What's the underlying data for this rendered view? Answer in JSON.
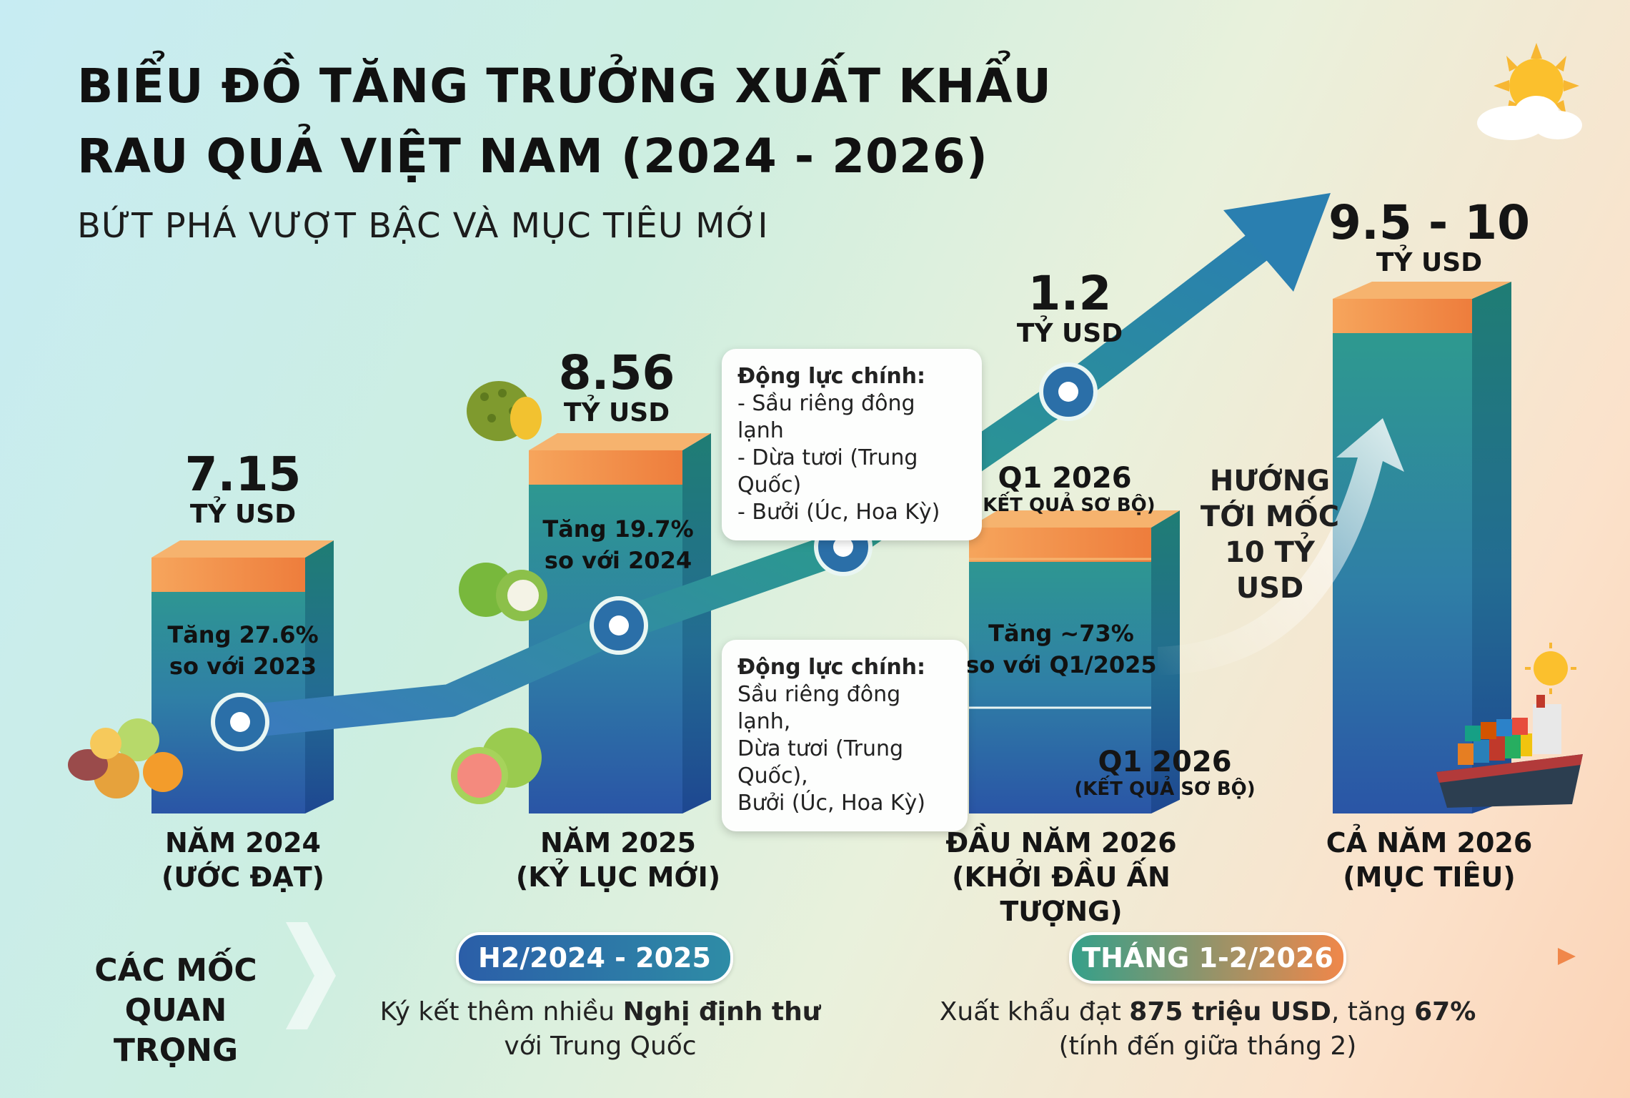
{
  "header": {
    "title_line1": "BIỂU ĐỒ TĂNG TRƯỞNG XUẤT KHẨU",
    "title_line2": "RAU QUẢ VIỆT NAM (2024 - 2026)",
    "subtitle": "BỨT PHÁ VƯỢT BẬC VÀ MỤC TIÊU MỚI"
  },
  "chart_data": {
    "type": "bar",
    "categories": [
      "NĂM 2024 (ƯỚC ĐẠT)",
      "NĂM 2025 (KỶ LỤC MỚI)",
      "ĐẦU NĂM 2026 (KHỞI ĐẦU ẤN TƯỢNG)",
      "CẢ NĂM 2026 (MỤC TIÊU)"
    ],
    "unit": "TỶ USD",
    "bars": [
      {
        "value_label": "7.15",
        "unit": "TỶ USD",
        "growth_line1": "Tăng 27.6%",
        "growth_line2": "so với 2023",
        "label_line1": "NĂM 2024",
        "label_line2": "(ƯỚC ĐẠT)",
        "value": 7.15
      },
      {
        "value_label": "8.56",
        "unit": "TỶ USD",
        "growth_line1": "Tăng 19.7%",
        "growth_line2": "so với 2024",
        "label_line1": "NĂM 2025",
        "label_line2": "(KỶ LỤC MỚI)",
        "value": 8.56
      },
      {
        "value_label": "1.2",
        "unit": "TỶ USD",
        "growth_line1": "Tăng ~73%",
        "growth_line2": "so với Q1/2025",
        "label_line1": "ĐẦU NĂM 2026",
        "label_line2": "(KHỞI ĐẦU ẤN TƯỢNG)",
        "value": 1.2,
        "q1_top_line1": "Q1 2026",
        "q1_top_line2": "(KẾT QUẢ SƠ BỘ)",
        "q1_bottom_line1": "Q1 2026",
        "q1_bottom_line2": "(KẾT QUẢ SƠ BỘ)"
      },
      {
        "value_label": "9.5 - 10",
        "unit": "TỶ USD",
        "label_line1": "CẢ NĂM 2026",
        "label_line2": "(MỤC TIÊU)",
        "value_range": [
          9.5,
          10
        ]
      }
    ],
    "trend_line": true,
    "annotation_toward": [
      "HƯỚNG",
      "TỚI MỐC",
      "10 TỶ",
      "USD"
    ]
  },
  "callouts": {
    "upper": {
      "title": "Động lực chính:",
      "items": [
        "- Sầu riêng đông lạnh",
        "- Dừa tươi (Trung Quốc)",
        "- Bưởi (Úc, Hoa Kỳ)"
      ]
    },
    "lower": {
      "title": "Động lực chính:",
      "items": [
        "Sầu riêng đông lạnh,",
        "Dừa tươi (Trung Quốc),",
        "Bưởi (Úc, Hoa Kỳ)"
      ]
    }
  },
  "milestones": {
    "title_line1": "CÁC MỐC",
    "title_line2": "QUAN TRỌNG",
    "items": [
      {
        "period": "H2/2024 - 2025",
        "text_pre": "Ký kết thêm nhiều ",
        "text_bold": "Nghị định thư",
        "text_post": "",
        "line2": "với Trung Quốc"
      },
      {
        "period": "THÁNG 1-2/2026",
        "text_pre": "Xuất khẩu đạt ",
        "text_bold": "875 triệu USD",
        "text_post": ", tăng ",
        "text_bold2": "67%",
        "line2": "(tính đến giữa tháng 2)"
      }
    ]
  },
  "colors": {
    "bar_top": "#f0874a",
    "bar_mid": "#2e9a8a",
    "bar_bottom": "#2b5ea8",
    "arrow_start": "#2b6fb0",
    "arrow_end": "#2a8a8e"
  }
}
